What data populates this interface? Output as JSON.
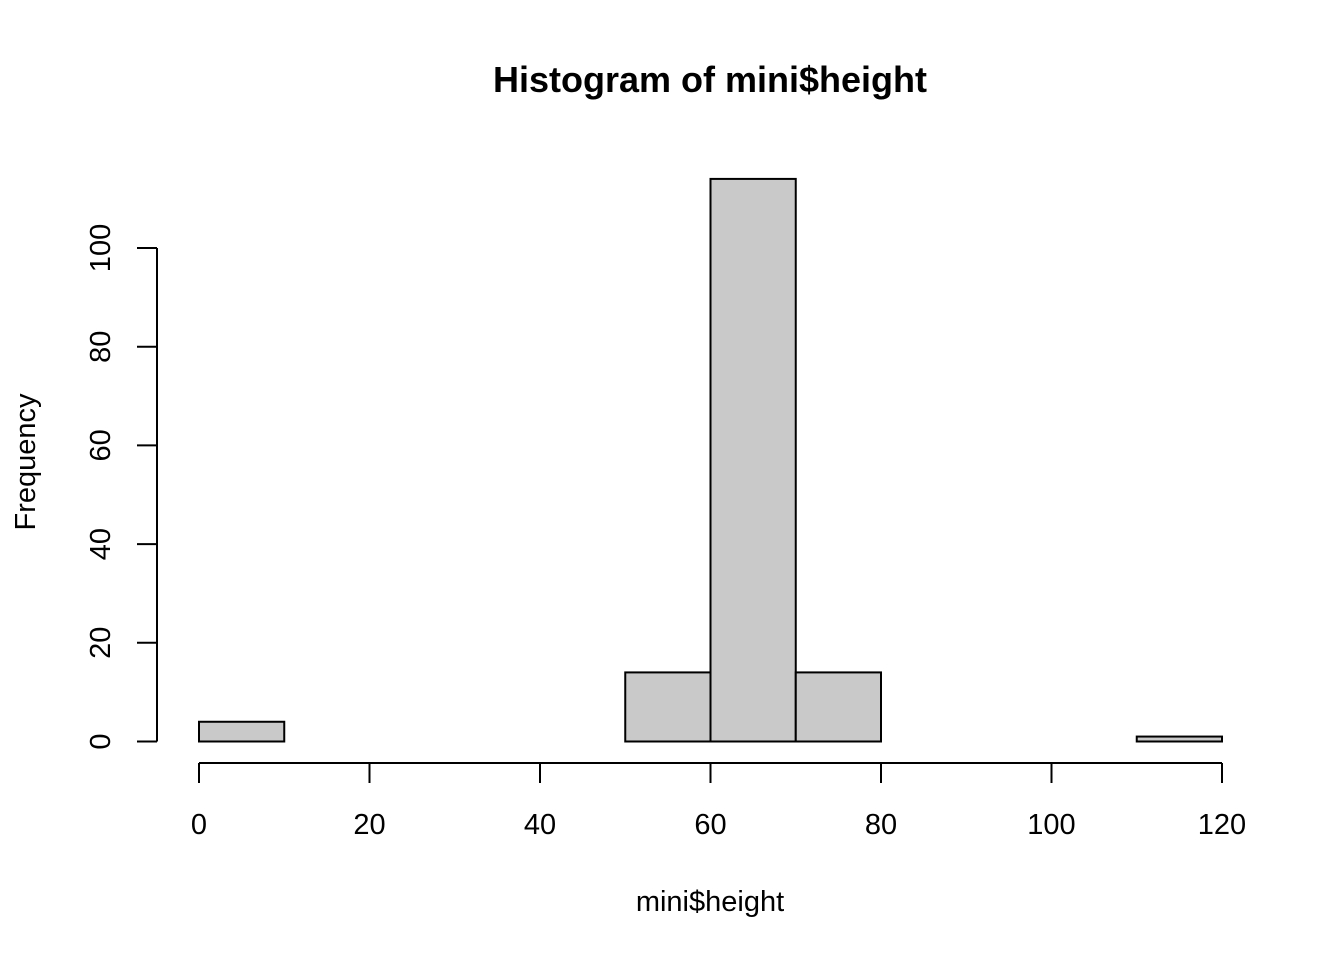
{
  "chart_data": {
    "type": "bar",
    "title": "Histogram of mini$height",
    "xlabel": "mini$height",
    "ylabel": "Frequency",
    "xlim": [
      0,
      120
    ],
    "ylim": [
      0,
      115
    ],
    "x_ticks": [
      0,
      20,
      40,
      60,
      80,
      100,
      120
    ],
    "y_ticks": [
      0,
      20,
      40,
      60,
      80,
      100
    ],
    "grid": false,
    "bar_fill": "#c9c9c9",
    "bins": [
      {
        "from": 0,
        "to": 10,
        "count": 4
      },
      {
        "from": 10,
        "to": 20,
        "count": 0
      },
      {
        "from": 20,
        "to": 30,
        "count": 0
      },
      {
        "from": 30,
        "to": 40,
        "count": 0
      },
      {
        "from": 40,
        "to": 50,
        "count": 0
      },
      {
        "from": 50,
        "to": 60,
        "count": 14
      },
      {
        "from": 60,
        "to": 70,
        "count": 114
      },
      {
        "from": 70,
        "to": 80,
        "count": 14
      },
      {
        "from": 80,
        "to": 90,
        "count": 0
      },
      {
        "from": 90,
        "to": 100,
        "count": 0
      },
      {
        "from": 100,
        "to": 110,
        "count": 0
      },
      {
        "from": 110,
        "to": 120,
        "count": 1
      }
    ]
  }
}
